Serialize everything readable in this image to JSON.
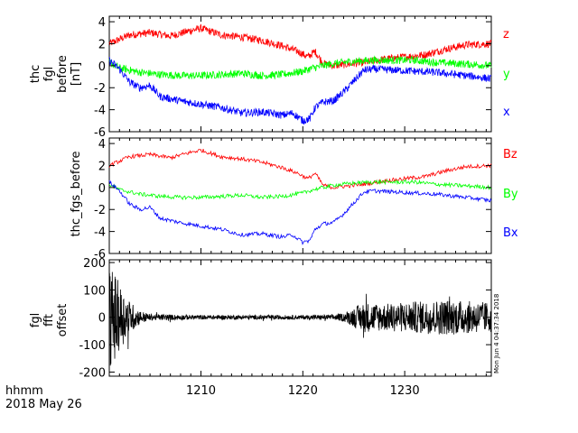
{
  "chart_data": [
    {
      "type": "line",
      "ylabel_lines": [
        "thc",
        "fgl",
        "before",
        "[nT]"
      ],
      "ylim": [
        -6,
        4.5
      ],
      "yticks": [
        4,
        2,
        0,
        -2,
        -4,
        -6
      ],
      "xlim": [
        1201,
        1238.5
      ],
      "series": [
        {
          "name": "z",
          "color": "#ff0000",
          "x": [
            1201,
            1203,
            1205,
            1207,
            1209,
            1210,
            1212,
            1214,
            1216,
            1218,
            1219.5,
            1220.5,
            1221.2,
            1222,
            1223,
            1224,
            1226,
            1228,
            1230,
            1232,
            1234,
            1236,
            1238.5
          ],
          "values": [
            2.0,
            2.8,
            3.0,
            2.7,
            3.2,
            3.4,
            2.8,
            2.6,
            2.3,
            1.8,
            1.3,
            0.8,
            1.3,
            0.2,
            0.0,
            0.1,
            0.3,
            0.6,
            0.8,
            1.0,
            1.5,
            1.9,
            2.0
          ]
        },
        {
          "name": "y",
          "color": "#00ff00",
          "x": [
            1201,
            1202,
            1204,
            1206,
            1208,
            1210,
            1212,
            1214,
            1216,
            1218,
            1220,
            1221,
            1222,
            1223,
            1225,
            1227,
            1229,
            1231,
            1233,
            1235,
            1237,
            1238.5
          ],
          "values": [
            0.3,
            -0.2,
            -0.6,
            -0.8,
            -0.9,
            -0.9,
            -0.8,
            -0.7,
            -0.9,
            -0.8,
            -0.5,
            -0.2,
            0.0,
            0.2,
            0.4,
            0.5,
            0.5,
            0.5,
            0.3,
            0.2,
            0.1,
            0.0
          ]
        },
        {
          "name": "x",
          "color": "#0000ff",
          "x": [
            1201,
            1202,
            1203,
            1204,
            1205,
            1206,
            1208,
            1210,
            1212,
            1214,
            1216,
            1218,
            1219,
            1220,
            1220.7,
            1221.2,
            1222,
            1223,
            1224,
            1225,
            1226,
            1227,
            1229,
            1231,
            1233,
            1235,
            1237,
            1238.5
          ],
          "values": [
            0.5,
            -0.3,
            -1.5,
            -2.0,
            -1.8,
            -2.8,
            -3.2,
            -3.5,
            -3.8,
            -4.3,
            -4.2,
            -4.5,
            -4.3,
            -5.0,
            -4.8,
            -3.8,
            -3.3,
            -3.2,
            -2.4,
            -1.4,
            -0.4,
            -0.3,
            -0.4,
            -0.5,
            -0.6,
            -0.8,
            -1.0,
            -1.2
          ]
        }
      ]
    },
    {
      "type": "line",
      "ylabel_lines": [
        "thc_fgs_before"
      ],
      "ylim": [
        -6,
        4.5
      ],
      "yticks": [
        4,
        2,
        0,
        -2,
        -4,
        -6
      ],
      "xlim": [
        1201,
        1238.5
      ],
      "series": [
        {
          "name": "Bz",
          "color": "#ff0000",
          "x": [
            1201,
            1203,
            1205,
            1207,
            1209,
            1210,
            1212,
            1214,
            1216,
            1218,
            1219.5,
            1220.5,
            1221.2,
            1222,
            1223,
            1224,
            1226,
            1228,
            1230,
            1232,
            1234,
            1236,
            1238.5
          ],
          "values": [
            2.0,
            2.8,
            3.0,
            2.7,
            3.2,
            3.4,
            2.8,
            2.6,
            2.3,
            1.8,
            1.3,
            0.8,
            1.3,
            0.2,
            0.0,
            0.1,
            0.3,
            0.6,
            0.8,
            1.0,
            1.5,
            1.9,
            2.0
          ]
        },
        {
          "name": "By",
          "color": "#00ff00",
          "x": [
            1201,
            1202,
            1204,
            1206,
            1208,
            1210,
            1212,
            1214,
            1216,
            1218,
            1220,
            1221,
            1222,
            1223,
            1225,
            1227,
            1229,
            1231,
            1233,
            1235,
            1237,
            1238.5
          ],
          "values": [
            0.3,
            -0.2,
            -0.6,
            -0.8,
            -0.9,
            -0.9,
            -0.8,
            -0.7,
            -0.9,
            -0.8,
            -0.5,
            -0.2,
            0.0,
            0.2,
            0.4,
            0.5,
            0.5,
            0.5,
            0.3,
            0.2,
            0.1,
            0.0
          ]
        },
        {
          "name": "Bx",
          "color": "#0000ff",
          "x": [
            1201,
            1202,
            1203,
            1204,
            1205,
            1206,
            1208,
            1210,
            1212,
            1214,
            1216,
            1218,
            1219,
            1220,
            1220.7,
            1221.2,
            1222,
            1223,
            1224,
            1225,
            1226,
            1227,
            1229,
            1231,
            1233,
            1235,
            1237,
            1238.5
          ],
          "values": [
            0.5,
            -0.3,
            -1.5,
            -2.0,
            -1.8,
            -2.8,
            -3.2,
            -3.5,
            -3.8,
            -4.3,
            -4.2,
            -4.5,
            -4.3,
            -5.0,
            -4.8,
            -3.8,
            -3.3,
            -3.2,
            -2.4,
            -1.4,
            -0.4,
            -0.3,
            -0.4,
            -0.5,
            -0.6,
            -0.8,
            -1.0,
            -1.2
          ]
        }
      ]
    },
    {
      "type": "line",
      "ylabel_lines": [
        "fgl",
        "fft",
        "offset"
      ],
      "ylim": [
        -215,
        210
      ],
      "yticks": [
        200,
        100,
        0,
        -100,
        -200
      ],
      "xlim": [
        1201,
        1238.5
      ],
      "series": [
        {
          "name": "",
          "color": "#000000",
          "amplitude_envelope": {
            "x": [
              1201,
              1201.5,
              1202,
              1203,
              1204,
              1205,
              1210,
              1215,
              1220,
              1223,
              1224,
              1225,
              1226,
              1228,
              1230,
              1232,
              1234,
              1236,
              1238.5
            ],
            "values": [
              180,
              170,
              120,
              60,
              25,
              12,
              8,
              8,
              8,
              10,
              15,
              35,
              55,
              50,
              55,
              60,
              65,
              60,
              55
            ]
          }
        }
      ]
    }
  ],
  "xaxis": {
    "ticks": [
      1210,
      1220,
      1230
    ],
    "tick_labels": [
      "1210",
      "1220",
      "1230"
    ],
    "row_label": "hhmm",
    "date": "2018 May 26"
  },
  "timestamp": "Mon Jun  4 04:37:34 2018"
}
